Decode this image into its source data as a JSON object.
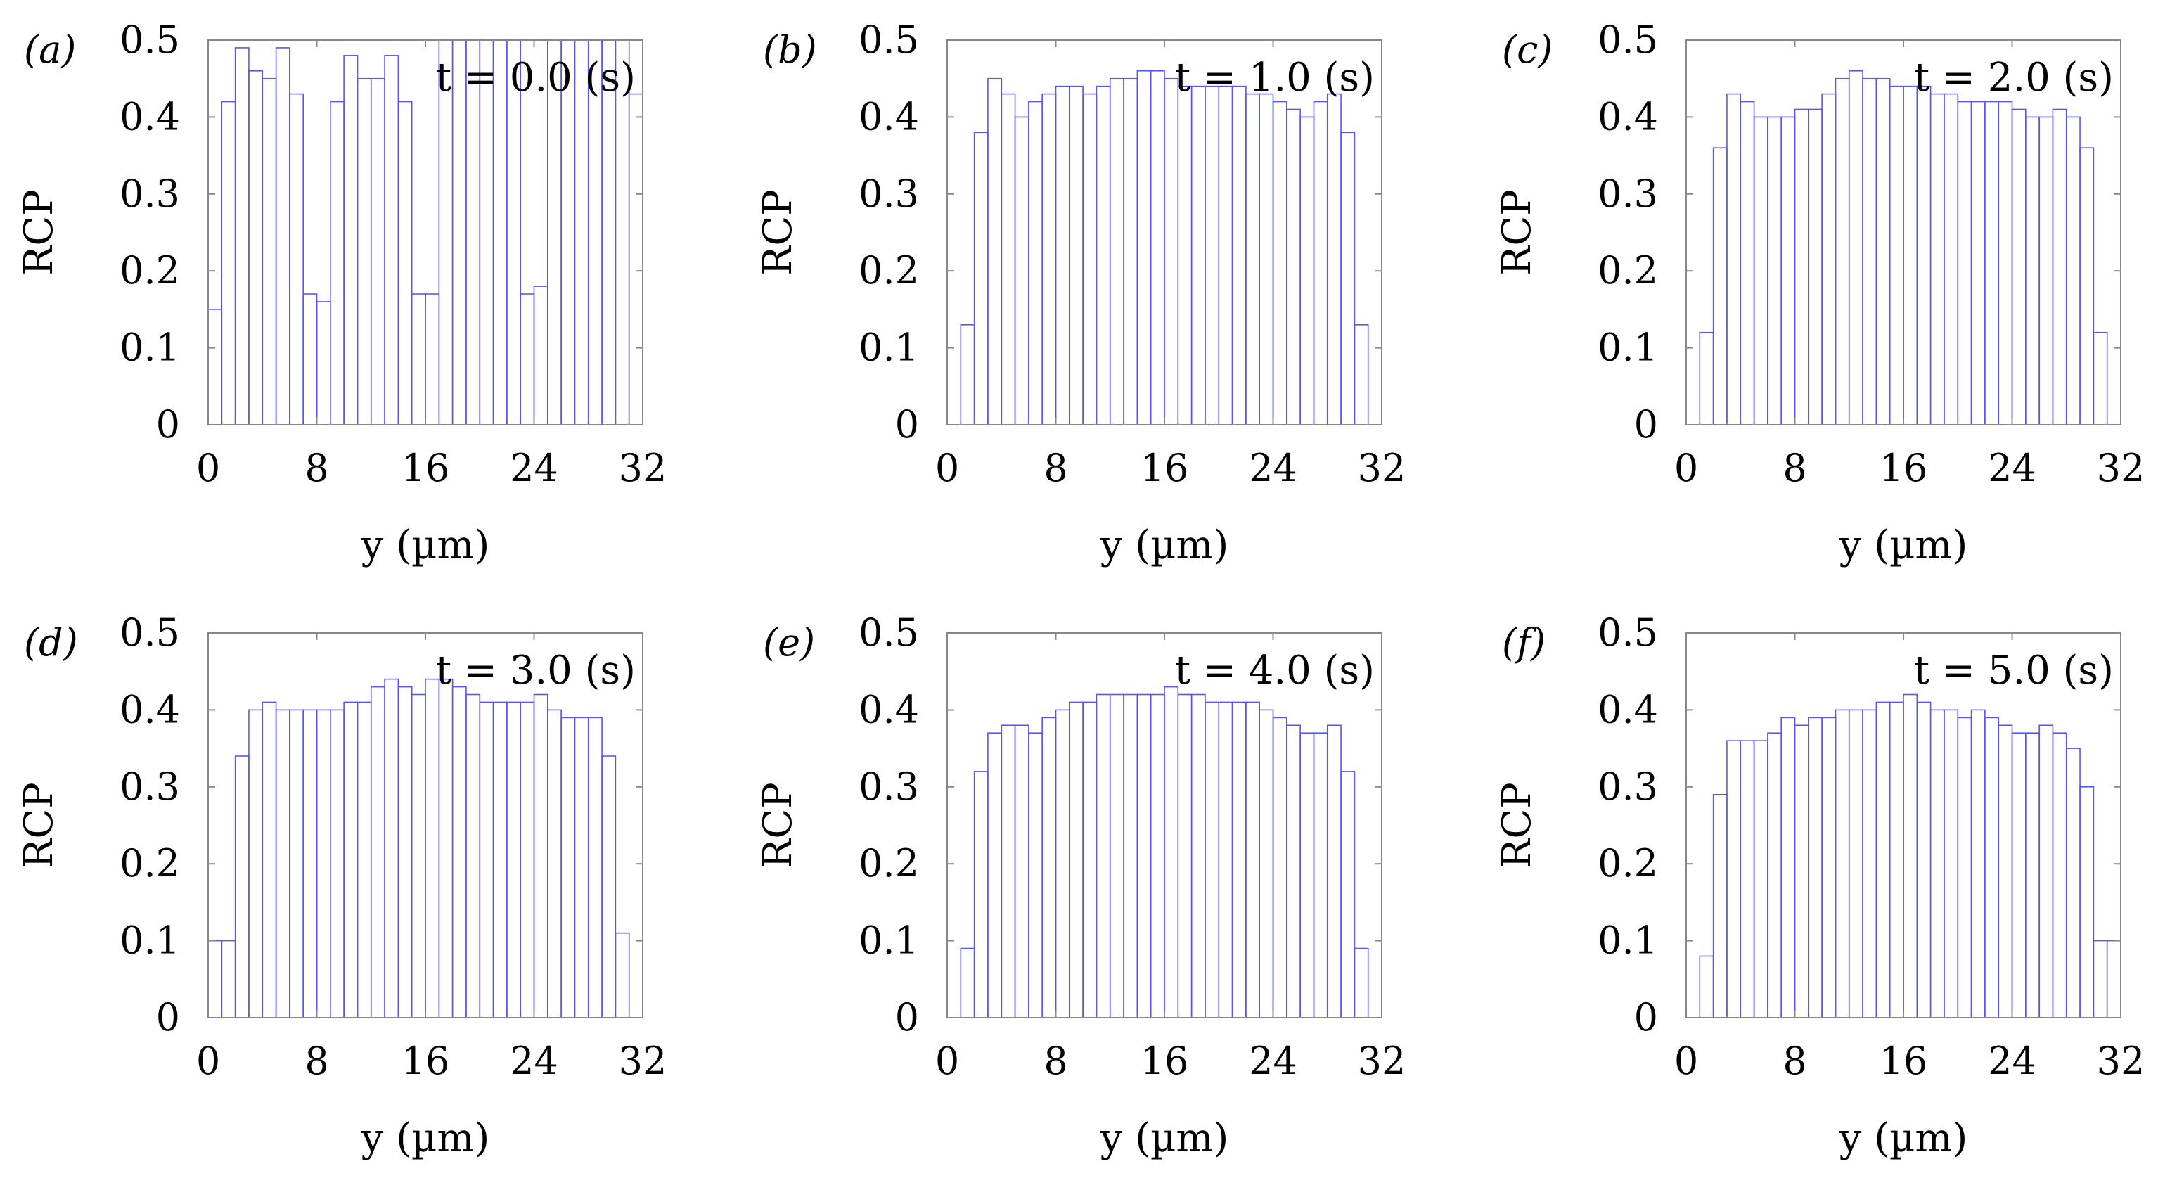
{
  "figure": {
    "bar_color": "#5555ff",
    "frame_color": "#888888",
    "text_color": "#000000"
  },
  "chart_data": [
    {
      "type": "bar",
      "panel_label": "(a)",
      "annotation": "t = 0.0 (s)",
      "xlabel": "y (µm)",
      "ylabel": "RCP",
      "xlim": [
        0,
        32
      ],
      "ylim": [
        0,
        0.5
      ],
      "xticks": [
        "0",
        "8",
        "16",
        "24",
        "32"
      ],
      "yticks": [
        "0",
        "0.1",
        "0.2",
        "0.3",
        "0.4",
        "0.5"
      ],
      "bin_width": 1,
      "values": [
        0.15,
        0.42,
        0.49,
        0.46,
        0.45,
        0.49,
        0.43,
        0.17,
        0.16,
        0.42,
        0.48,
        0.45,
        0.45,
        0.48,
        0.42,
        0.17,
        0.17,
        0.5,
        0.5,
        0.5,
        0.5,
        0.5,
        0.5,
        0.17,
        0.18,
        0.5,
        0.5,
        0.5,
        0.5,
        0.5,
        0.5,
        0.43
      ]
    },
    {
      "type": "bar",
      "panel_label": "(b)",
      "annotation": "t = 1.0 (s)",
      "xlabel": "y (µm)",
      "ylabel": "RCP",
      "xlim": [
        0,
        32
      ],
      "ylim": [
        0,
        0.5
      ],
      "xticks": [
        "0",
        "8",
        "16",
        "24",
        "32"
      ],
      "yticks": [
        "0",
        "0.1",
        "0.2",
        "0.3",
        "0.4",
        "0.5"
      ],
      "bin_width": 1,
      "values": [
        0.0,
        0.13,
        0.38,
        0.45,
        0.43,
        0.4,
        0.42,
        0.43,
        0.44,
        0.44,
        0.43,
        0.44,
        0.45,
        0.45,
        0.46,
        0.46,
        0.45,
        0.44,
        0.44,
        0.44,
        0.44,
        0.44,
        0.43,
        0.43,
        0.42,
        0.41,
        0.4,
        0.42,
        0.43,
        0.38,
        0.13,
        0.0
      ]
    },
    {
      "type": "bar",
      "panel_label": "(c)",
      "annotation": "t = 2.0 (s)",
      "xlabel": "y (µm)",
      "ylabel": "RCP",
      "xlim": [
        0,
        32
      ],
      "ylim": [
        0,
        0.5
      ],
      "xticks": [
        "0",
        "8",
        "16",
        "24",
        "32"
      ],
      "yticks": [
        "0",
        "0.1",
        "0.2",
        "0.3",
        "0.4",
        "0.5"
      ],
      "bin_width": 1,
      "values": [
        0.0,
        0.12,
        0.36,
        0.43,
        0.42,
        0.4,
        0.4,
        0.4,
        0.41,
        0.41,
        0.43,
        0.45,
        0.46,
        0.45,
        0.45,
        0.44,
        0.44,
        0.44,
        0.43,
        0.43,
        0.42,
        0.42,
        0.42,
        0.42,
        0.41,
        0.4,
        0.4,
        0.41,
        0.4,
        0.36,
        0.12,
        0.0
      ]
    },
    {
      "type": "bar",
      "panel_label": "(d)",
      "annotation": "t = 3.0 (s)",
      "xlabel": "y (µm)",
      "ylabel": "RCP",
      "xlim": [
        0,
        32
      ],
      "ylim": [
        0,
        0.5
      ],
      "xticks": [
        "0",
        "8",
        "16",
        "24",
        "32"
      ],
      "yticks": [
        "0",
        "0.1",
        "0.2",
        "0.3",
        "0.4",
        "0.5"
      ],
      "bin_width": 1,
      "values": [
        0.1,
        0.1,
        0.34,
        0.4,
        0.41,
        0.4,
        0.4,
        0.4,
        0.4,
        0.4,
        0.41,
        0.41,
        0.43,
        0.44,
        0.43,
        0.42,
        0.44,
        0.44,
        0.43,
        0.42,
        0.41,
        0.41,
        0.41,
        0.41,
        0.42,
        0.4,
        0.39,
        0.39,
        0.39,
        0.34,
        0.11,
        0.0
      ]
    },
    {
      "type": "bar",
      "panel_label": "(e)",
      "annotation": "t = 4.0 (s)",
      "xlabel": "y (µm)",
      "ylabel": "RCP",
      "xlim": [
        0,
        32
      ],
      "ylim": [
        0,
        0.5
      ],
      "xticks": [
        "0",
        "8",
        "16",
        "24",
        "32"
      ],
      "yticks": [
        "0",
        "0.1",
        "0.2",
        "0.3",
        "0.4",
        "0.5"
      ],
      "bin_width": 1,
      "values": [
        0.0,
        0.09,
        0.32,
        0.37,
        0.38,
        0.38,
        0.37,
        0.39,
        0.4,
        0.41,
        0.41,
        0.42,
        0.42,
        0.42,
        0.42,
        0.42,
        0.43,
        0.42,
        0.42,
        0.41,
        0.41,
        0.41,
        0.41,
        0.4,
        0.39,
        0.38,
        0.37,
        0.37,
        0.38,
        0.32,
        0.09,
        0.0
      ]
    },
    {
      "type": "bar",
      "panel_label": "(f)",
      "annotation": "t = 5.0 (s)",
      "xlabel": "y (µm)",
      "ylabel": "RCP",
      "xlim": [
        0,
        32
      ],
      "ylim": [
        0,
        0.5
      ],
      "xticks": [
        "0",
        "8",
        "16",
        "24",
        "32"
      ],
      "yticks": [
        "0",
        "0.1",
        "0.2",
        "0.3",
        "0.4",
        "0.5"
      ],
      "bin_width": 1,
      "values": [
        0.0,
        0.08,
        0.29,
        0.36,
        0.36,
        0.36,
        0.37,
        0.39,
        0.38,
        0.39,
        0.39,
        0.4,
        0.4,
        0.4,
        0.41,
        0.41,
        0.42,
        0.41,
        0.4,
        0.4,
        0.39,
        0.4,
        0.39,
        0.38,
        0.37,
        0.37,
        0.38,
        0.37,
        0.35,
        0.3,
        0.1,
        0.1
      ]
    }
  ]
}
